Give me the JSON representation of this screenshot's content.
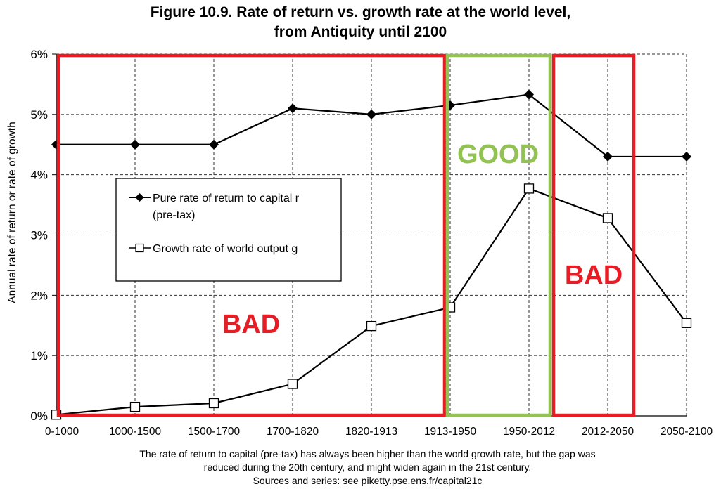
{
  "chart_data": {
    "type": "line",
    "title": [
      "Figure 10.9. Rate of return vs. growth rate at the world level,",
      "from Antiquity until 2100"
    ],
    "ylabel": "Annual rate of return or rate of growth",
    "xlabel": "",
    "categories": [
      "0-1000",
      "1000-1500",
      "1500-1700",
      "1700-1820",
      "1820-1913",
      "1913-1950",
      "1950-2012",
      "2012-2050",
      "2050-2100"
    ],
    "y_ticks": [
      "0%",
      "1%",
      "2%",
      "3%",
      "4%",
      "5%",
      "6%"
    ],
    "ylim": [
      0,
      6
    ],
    "grid": true,
    "legend_placement": "center-left",
    "series": [
      {
        "name": "Pure rate of return to capital r (pre-tax)",
        "legend_lines": [
          "Pure rate of return to capital r",
          "(pre-tax)"
        ],
        "marker": "filled-diamond",
        "values": [
          4.5,
          4.5,
          4.5,
          5.1,
          5.0,
          5.15,
          5.33,
          4.3,
          4.3
        ]
      },
      {
        "name": "Growth rate of world output g",
        "legend_lines": [
          "Growth rate of world output g"
        ],
        "marker": "open-square",
        "values": [
          0.02,
          0.15,
          0.21,
          0.53,
          1.49,
          1.8,
          3.77,
          3.28,
          1.54
        ]
      }
    ],
    "annotations": [
      {
        "label": "BAD",
        "color": "#e81c24",
        "from_category": "0-1000",
        "to_category": "1913-1950"
      },
      {
        "label": "GOOD",
        "color": "#92c352",
        "from_category": "1913-1950",
        "to_category": "1950-2012"
      },
      {
        "label": "BAD",
        "color": "#e81c24",
        "from_category": "2012-2050",
        "to_category": "2012-2050"
      }
    ],
    "caption": [
      "The rate of return to capital (pre-tax) has always been higher than the world growth rate, but the gap was",
      "reduced during the 20th century, and might widen again in the 21st century.",
      "Sources and series: see piketty.pse.ens.fr/capital21c"
    ]
  }
}
